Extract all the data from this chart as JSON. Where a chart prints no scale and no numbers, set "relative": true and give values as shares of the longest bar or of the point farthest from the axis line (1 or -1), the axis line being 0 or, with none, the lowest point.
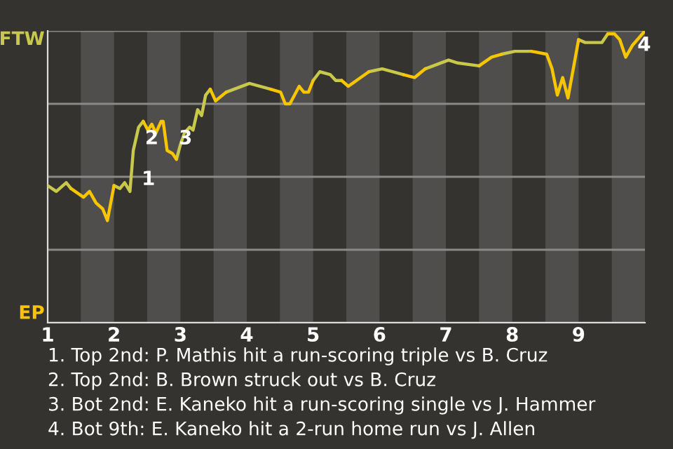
{
  "chart_data": {
    "type": "line",
    "relative": true,
    "x": [
      1.0,
      1.13,
      1.28,
      1.35,
      1.54,
      1.63,
      1.73,
      1.83,
      1.9,
      2.0,
      2.09,
      2.16,
      2.24,
      2.29,
      2.37,
      2.44,
      2.51,
      2.57,
      2.63,
      2.71,
      2.74,
      2.8,
      2.88,
      2.94,
      3.0,
      3.06,
      3.14,
      3.19,
      3.26,
      3.32,
      3.38,
      3.45,
      3.53,
      3.69,
      4.04,
      4.36,
      4.51,
      4.58,
      4.65,
      4.79,
      4.86,
      4.93,
      5.0,
      5.1,
      5.26,
      5.34,
      5.43,
      5.53,
      5.84,
      6.04,
      6.36,
      6.53,
      6.69,
      7.04,
      7.18,
      7.5,
      7.69,
      7.84,
      8.04,
      8.29,
      8.52,
      8.6,
      8.68,
      8.76,
      8.84,
      9.0,
      9.1,
      9.35,
      9.44,
      9.54,
      9.62,
      9.71,
      9.81,
      10.0
    ],
    "series": [
      {
        "color": "#c8c84b",
        "values": [
          0.47,
          0.45,
          0.48,
          0.46,
          null,
          null,
          null,
          null,
          null,
          0.47,
          0.46,
          0.48,
          0.45,
          0.59,
          0.67,
          0.69,
          null,
          null,
          null,
          null,
          null,
          null,
          null,
          0.56,
          0.61,
          0.65,
          0.67,
          0.66,
          0.73,
          0.71,
          0.78,
          0.8,
          null,
          0.79,
          0.82,
          0.8,
          null,
          null,
          null,
          null,
          null,
          null,
          0.83,
          0.86,
          0.85,
          0.83,
          0.83,
          null,
          0.86,
          0.87,
          0.85,
          null,
          0.87,
          0.9,
          0.89,
          0.88,
          null,
          0.92,
          0.93,
          0.93,
          null,
          null,
          null,
          null,
          null,
          0.97,
          0.96,
          0.96,
          0.99,
          null,
          null,
          null,
          null,
          null
        ]
      },
      {
        "color": "#f7c600",
        "values": [
          null,
          null,
          null,
          0.46,
          0.43,
          0.45,
          0.41,
          0.39,
          0.35,
          0.47,
          null,
          null,
          null,
          null,
          null,
          0.69,
          0.66,
          0.68,
          0.65,
          0.69,
          0.69,
          0.59,
          0.58,
          0.56,
          null,
          null,
          null,
          null,
          null,
          null,
          null,
          0.8,
          0.76,
          0.79,
          null,
          0.8,
          0.79,
          0.75,
          0.75,
          0.81,
          0.79,
          0.79,
          0.83,
          null,
          null,
          null,
          0.83,
          0.81,
          0.86,
          null,
          0.85,
          0.84,
          0.87,
          null,
          null,
          0.88,
          0.91,
          0.92,
          null,
          0.93,
          0.92,
          0.87,
          0.78,
          0.84,
          0.77,
          0.97,
          null,
          null,
          0.99,
          0.99,
          0.97,
          0.91,
          0.95,
          1.0
        ]
      }
    ],
    "xlim": [
      1,
      10
    ],
    "xticks": [
      1,
      2,
      3,
      4,
      5,
      6,
      7,
      8,
      9
    ],
    "grid": "y",
    "bands": [
      {
        "axis": "x",
        "from": 1.5,
        "to": 2,
        "color": "#4f4e4c"
      },
      {
        "axis": "x",
        "from": 2.5,
        "to": 3,
        "color": "#4f4e4c"
      },
      {
        "axis": "x",
        "from": 3.5,
        "to": 4,
        "color": "#4f4e4c"
      },
      {
        "axis": "x",
        "from": 4.5,
        "to": 5,
        "color": "#4f4e4c"
      },
      {
        "axis": "x",
        "from": 5.5,
        "to": 6,
        "color": "#4f4e4c"
      },
      {
        "axis": "x",
        "from": 6.5,
        "to": 7,
        "color": "#4f4e4c"
      },
      {
        "axis": "x",
        "from": 7.5,
        "to": 8,
        "color": "#4f4e4c"
      },
      {
        "axis": "x",
        "from": 8.5,
        "to": 9,
        "color": "#4f4e4c"
      },
      {
        "axis": "x",
        "from": 9.5,
        "to": 10,
        "color": "#4f4e4c"
      }
    ],
    "annotations": [
      "FTW",
      "EP",
      {
        "text": "1",
        "x": 2.24,
        "y": 0.45
      },
      {
        "text": "2",
        "x": 2.29,
        "y": 0.59
      },
      {
        "text": "3",
        "x": 2.8,
        "y": 0.59
      },
      {
        "text": "4",
        "x": 9.71,
        "y": 0.91
      },
      "1. Top 2nd: P. Mathis hit a run-scoring triple vs B. Cruz",
      "2. Top 2nd: B. Brown struck out vs B. Cruz",
      "3. Bot 2nd: E. Kaneko hit a run-scoring single vs J. Hammer",
      "4. Bot 9th: E. Kaneko hit a 2-run home run vs J. Allen"
    ]
  }
}
